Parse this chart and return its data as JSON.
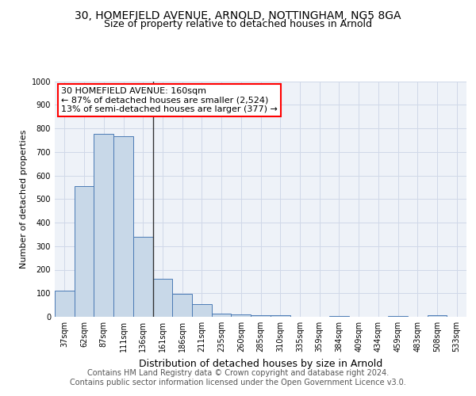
{
  "title_line1": "30, HOMEFIELD AVENUE, ARNOLD, NOTTINGHAM, NG5 8GA",
  "title_line2": "Size of property relative to detached houses in Arnold",
  "xlabel": "Distribution of detached houses by size in Arnold",
  "ylabel": "Number of detached properties",
  "categories": [
    "37sqm",
    "62sqm",
    "87sqm",
    "111sqm",
    "136sqm",
    "161sqm",
    "186sqm",
    "211sqm",
    "235sqm",
    "260sqm",
    "285sqm",
    "310sqm",
    "335sqm",
    "359sqm",
    "384sqm",
    "409sqm",
    "434sqm",
    "459sqm",
    "483sqm",
    "508sqm",
    "533sqm"
  ],
  "values": [
    112,
    555,
    775,
    765,
    338,
    163,
    98,
    53,
    15,
    10,
    8,
    6,
    0,
    0,
    5,
    0,
    0,
    5,
    0,
    8,
    0
  ],
  "bar_color": "#c8d8e8",
  "bar_edge_color": "#4a7ab5",
  "highlight_index": 5,
  "highlight_line_color": "#333333",
  "annotation_line1": "30 HOMEFIELD AVENUE: 160sqm",
  "annotation_line2": "← 87% of detached houses are smaller (2,524)",
  "annotation_line3": "13% of semi-detached houses are larger (377) →",
  "ylim": [
    0,
    1000
  ],
  "yticks": [
    0,
    100,
    200,
    300,
    400,
    500,
    600,
    700,
    800,
    900,
    1000
  ],
  "grid_color": "#d0d8e8",
  "bg_color": "#eef2f8",
  "footer_text": "Contains HM Land Registry data © Crown copyright and database right 2024.\nContains public sector information licensed under the Open Government Licence v3.0.",
  "title_fontsize": 10,
  "subtitle_fontsize": 9,
  "xlabel_fontsize": 9,
  "ylabel_fontsize": 8,
  "tick_fontsize": 7,
  "annotation_fontsize": 8,
  "footer_fontsize": 7
}
